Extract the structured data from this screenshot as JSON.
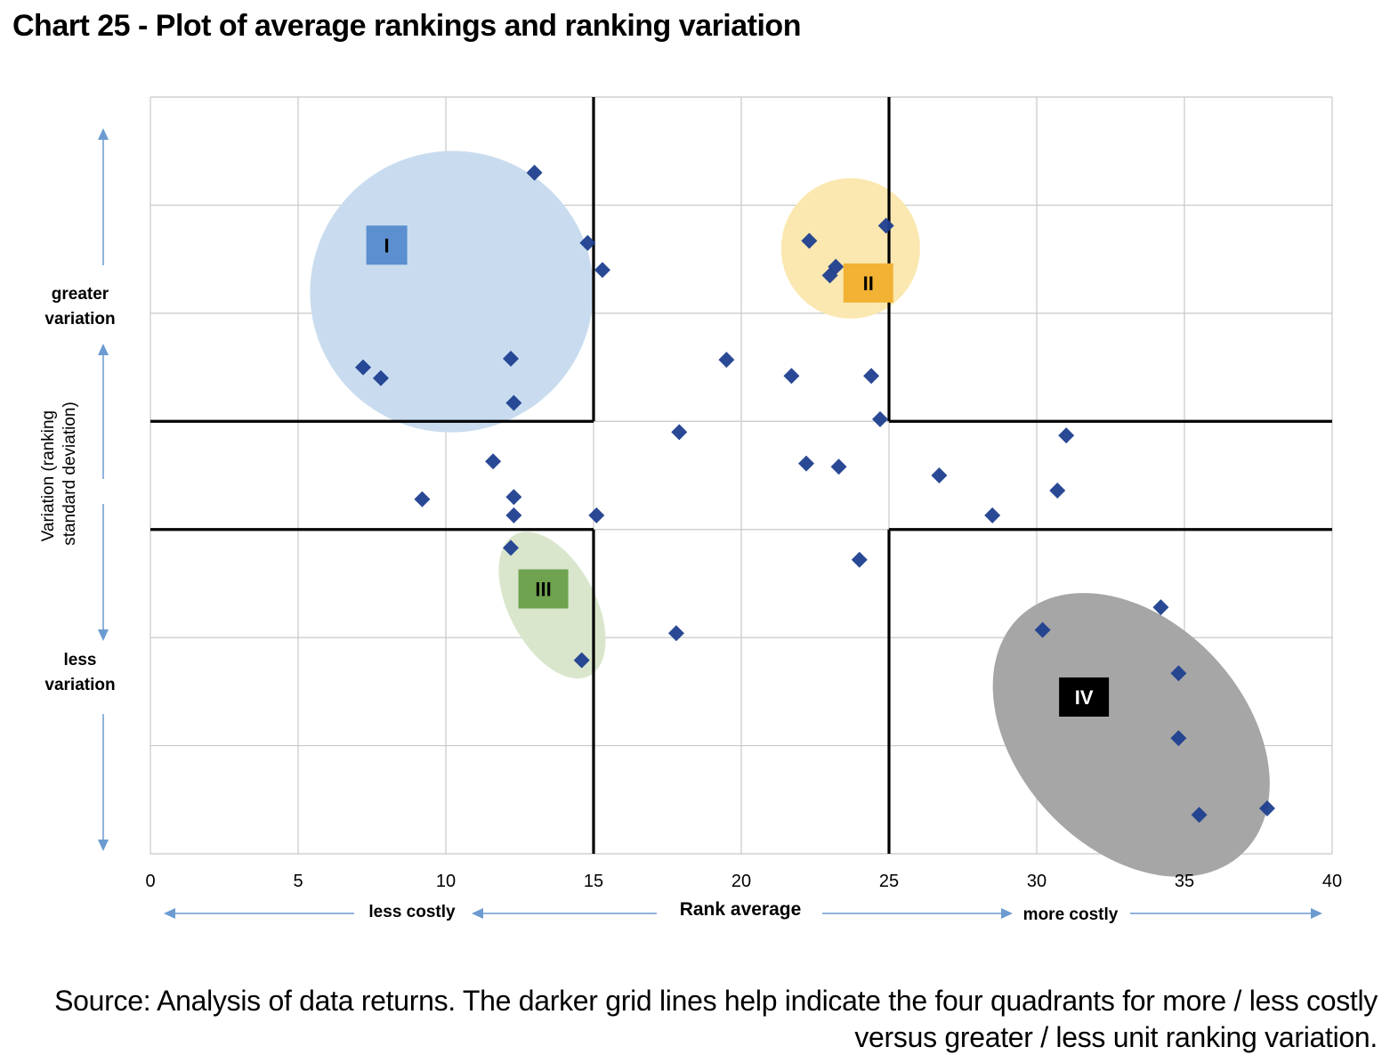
{
  "title": "Chart 25 - Plot of average rankings and ranking variation",
  "source": "Source: Analysis of data returns. The darker grid lines help indicate the four quadrants for more / less costly versus greater / less unit ranking variation.",
  "colors": {
    "marker": "#1f3f8f",
    "grid": "#c8c8c8",
    "quadrant_line": "#000000",
    "group_I_fill": "#c9dcef",
    "group_II_fill": "#fbe8b0",
    "group_III_fill": "#d9e6cc",
    "group_IV_fill": "#a6a6a6",
    "label_I": "#5b8fcf",
    "label_II": "#f2b234",
    "label_III": "#6fa34f",
    "label_IV": "#000000",
    "axis_arrow": "#6b9bd1"
  },
  "chart_data": {
    "type": "scatter",
    "xlabel": "Rank average",
    "ylabel": "Variation (ranking standard deviation)",
    "xlim": [
      0,
      40
    ],
    "ylim": [
      0,
      7
    ],
    "x_ticks": [
      "0",
      "5",
      "10",
      "15",
      "20",
      "25",
      "30",
      "35",
      "40"
    ],
    "grid": true,
    "quadrant_dividers": {
      "x": [
        15,
        25
      ],
      "y": [
        3,
        4
      ]
    },
    "annotations": {
      "less_costly": "less costly",
      "more_costly": "more costly",
      "greater_variation_line1": "greater",
      "greater_variation_line2": "variation",
      "less_variation_line1": "less",
      "less_variation_line2": "variation"
    },
    "groups": [
      {
        "label": "I",
        "center": [
          10.2,
          5.2
        ],
        "radii": [
          4.8,
          1.3
        ],
        "rotation": -20
      },
      {
        "label": "II",
        "center": [
          23.7,
          5.6
        ],
        "radii": [
          2.35,
          0.65
        ],
        "rotation": 0
      },
      {
        "label": "III",
        "center": [
          13.6,
          2.3
        ],
        "radii": [
          2.7,
          0.4
        ],
        "rotation": 62
      },
      {
        "label": "IV",
        "center": [
          33.2,
          1.1
        ],
        "radii": [
          5.5,
          1.05
        ],
        "rotation": 47
      }
    ],
    "points": [
      {
        "x": 13.0,
        "y": 6.3
      },
      {
        "x": 14.8,
        "y": 5.65
      },
      {
        "x": 15.3,
        "y": 5.4
      },
      {
        "x": 7.2,
        "y": 4.5
      },
      {
        "x": 7.8,
        "y": 4.4
      },
      {
        "x": 12.2,
        "y": 4.58
      },
      {
        "x": 12.3,
        "y": 4.17
      },
      {
        "x": 22.3,
        "y": 5.67
      },
      {
        "x": 24.9,
        "y": 5.81
      },
      {
        "x": 23.2,
        "y": 5.43
      },
      {
        "x": 23.0,
        "y": 5.35
      },
      {
        "x": 19.5,
        "y": 4.57
      },
      {
        "x": 21.7,
        "y": 4.42
      },
      {
        "x": 24.4,
        "y": 4.42
      },
      {
        "x": 24.7,
        "y": 4.02
      },
      {
        "x": 17.9,
        "y": 3.9
      },
      {
        "x": 11.6,
        "y": 3.63
      },
      {
        "x": 9.2,
        "y": 3.28
      },
      {
        "x": 12.3,
        "y": 3.3
      },
      {
        "x": 12.3,
        "y": 3.13
      },
      {
        "x": 15.1,
        "y": 3.13
      },
      {
        "x": 22.2,
        "y": 3.61
      },
      {
        "x": 23.3,
        "y": 3.58
      },
      {
        "x": 26.7,
        "y": 3.5
      },
      {
        "x": 28.5,
        "y": 3.13
      },
      {
        "x": 30.7,
        "y": 3.36
      },
      {
        "x": 31.0,
        "y": 3.87
      },
      {
        "x": 24.0,
        "y": 2.72
      },
      {
        "x": 12.2,
        "y": 2.83
      },
      {
        "x": 17.8,
        "y": 2.04
      },
      {
        "x": 14.6,
        "y": 1.79
      },
      {
        "x": 34.2,
        "y": 2.28
      },
      {
        "x": 30.2,
        "y": 2.07
      },
      {
        "x": 34.8,
        "y": 1.67
      },
      {
        "x": 34.8,
        "y": 1.07
      },
      {
        "x": 35.5,
        "y": 0.36
      },
      {
        "x": 37.8,
        "y": 0.42
      }
    ]
  }
}
